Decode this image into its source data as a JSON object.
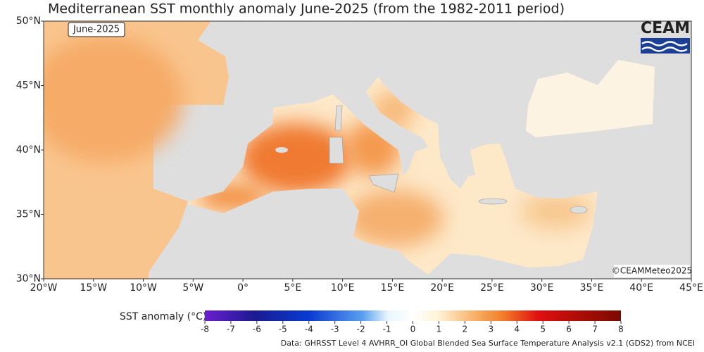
{
  "title": "Mediterranean SST monthly anomaly June-2025 (from the 1982-2011 period)",
  "map": {
    "date_label": "June-2025",
    "logo": "CEAM",
    "credit": "©CEAMMeteo2025",
    "lat_ticks": [
      "50°N",
      "45°N",
      "40°N",
      "35°N",
      "30°N"
    ],
    "lon_ticks": [
      "20°W",
      "15°W",
      "10°W",
      "5°W",
      "0°",
      "5°E",
      "10°E",
      "15°E",
      "20°E",
      "25°E",
      "30°E",
      "35°E",
      "40°E",
      "45°E"
    ]
  },
  "colorbar": {
    "label": "SST anomaly (°C)",
    "range": [
      -8,
      8
    ],
    "ticks": [
      -8,
      -7,
      -6,
      -5,
      -4,
      -3,
      -2,
      -1,
      0,
      1,
      2,
      3,
      4,
      5,
      6,
      7,
      8
    ]
  },
  "source": "Data: GHRSST Level 4 AVHRR_OI Global Blended Sea Surface Temperature Analysis v2.1 (GDS2) from NCEI"
}
